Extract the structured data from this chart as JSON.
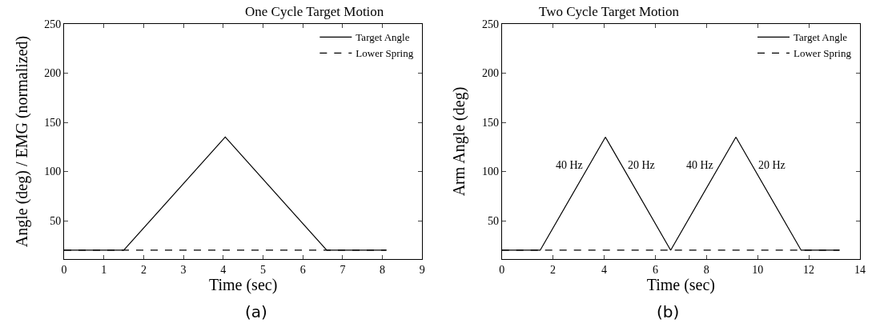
{
  "chart_data": [
    {
      "type": "line",
      "title": "One Cycle Target Motion",
      "xlabel": "Time (sec)",
      "ylabel": "Angle (deg) / EMG (normalized)",
      "xlim": [
        0,
        9
      ],
      "xticks": [
        0,
        1,
        2,
        3,
        4,
        5,
        6,
        7,
        8,
        9
      ],
      "ylim": [
        11,
        250
      ],
      "yticks": [
        50,
        100,
        150,
        200,
        250
      ],
      "legend": "top right",
      "annotations": [
        "(a)"
      ],
      "series": [
        {
          "name": "Target Angle",
          "color": "#000000",
          "line_style": "solid",
          "x": [
            0,
            1.5,
            4.05,
            6.6,
            8.1
          ],
          "values": [
            20,
            20,
            135,
            20,
            20
          ]
        },
        {
          "name": "Lower Spring",
          "color": "#000000",
          "line_style": "dashed",
          "x": [
            0,
            8.1
          ],
          "values": [
            20,
            20
          ]
        }
      ]
    },
    {
      "type": "line",
      "title": "Two Cycle Target Motion",
      "xlabel": "Time (sec)",
      "ylabel": "Arm Angle (deg)",
      "xlim": [
        0,
        14
      ],
      "xticks": [
        0,
        2,
        4,
        6,
        8,
        10,
        12,
        14
      ],
      "ylim": [
        11,
        250
      ],
      "yticks": [
        50,
        100,
        150,
        200,
        250
      ],
      "legend": "top right",
      "annotations": [
        "(b)",
        "40 Hz",
        "20 Hz",
        "40 Hz",
        "20 Hz"
      ],
      "series": [
        {
          "name": "Target Angle",
          "color": "#000000",
          "line_style": "solid",
          "x": [
            0,
            1.5,
            4.05,
            6.6,
            9.15,
            11.7,
            13.2
          ],
          "values": [
            20,
            20,
            135,
            20,
            135,
            20,
            20
          ]
        },
        {
          "name": "Lower Spring",
          "color": "#000000",
          "line_style": "dashed",
          "x": [
            0,
            13.2
          ],
          "values": [
            20,
            20
          ]
        }
      ]
    }
  ]
}
